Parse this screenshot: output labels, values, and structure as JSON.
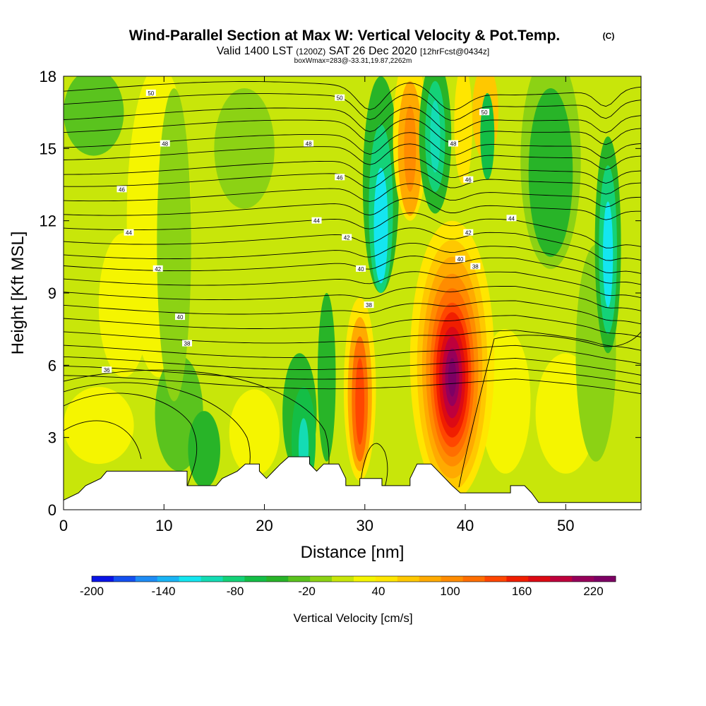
{
  "title": {
    "main": "Wind-Parallel Section at Max W: Vertical Velocity & Pot.Temp.",
    "copyright": "(C)",
    "valid_prefix": "Valid 1400 LST",
    "valid_utc": "(1200Z)",
    "valid_date": "SAT 26 Dec 2020",
    "forecast": "[12hrFcst@0434z]",
    "box_info": "boxWmax=283@-33.31,19.87,2262m"
  },
  "chart_data": {
    "type": "heatmap",
    "xlabel": "Distance [nm]",
    "ylabel": "Height [Kft MSL]",
    "xlim": [
      0,
      57.5
    ],
    "ylim": [
      0,
      18
    ],
    "x_ticks": [
      0,
      10,
      20,
      30,
      40,
      50
    ],
    "y_ticks": [
      0,
      3,
      6,
      9,
      12,
      15,
      18
    ],
    "colorbar": {
      "label": "Vertical Velocity [cm/s]",
      "tick_labels": [
        "-200",
        "-140",
        "-80",
        "-20",
        "40",
        "100",
        "160",
        "220"
      ],
      "colors": [
        "#0a14e6",
        "#1450f0",
        "#1e8cf5",
        "#19b4f5",
        "#14e6f0",
        "#14dcb4",
        "#14d278",
        "#14be46",
        "#28b428",
        "#5ac31e",
        "#8cd214",
        "#c8e60a",
        "#f5f500",
        "#ffe600",
        "#ffc800",
        "#ffaa00",
        "#ff8c00",
        "#ff6e00",
        "#ff4600",
        "#f01e00",
        "#dc0a14",
        "#be003c",
        "#96005a",
        "#7d0064"
      ]
    },
    "w_features": [
      {
        "kind": "updraft",
        "x": 38.7,
        "y_kft": 5.5,
        "max_cm_s": 230
      },
      {
        "kind": "updraft",
        "x": 29.5,
        "y_kft": 4.5,
        "max_cm_s": 160
      },
      {
        "kind": "updraft",
        "x": 34.5,
        "y_kft": 14.0,
        "max_cm_s": 80
      },
      {
        "kind": "updraft",
        "x": 41.5,
        "y_kft": 16.5,
        "max_cm_s": 60
      },
      {
        "kind": "downdraft",
        "x": 37.0,
        "y_kft": 15.5,
        "max_cm_s": -90
      },
      {
        "kind": "downdraft",
        "x": 54.0,
        "y_kft": 10.5,
        "max_cm_s": -150
      },
      {
        "kind": "downdraft",
        "x": 31.5,
        "y_kft": 11.5,
        "max_cm_s": -100
      },
      {
        "kind": "downdraft",
        "x": 24.0,
        "y_kft": 3.0,
        "max_cm_s": -90
      }
    ],
    "theta_labels": [
      {
        "text": "50",
        "x": 8.7,
        "y": 17.3
      },
      {
        "text": "50",
        "x": 27.5,
        "y": 17.1
      },
      {
        "text": "50",
        "x": 41.9,
        "y": 16.5
      },
      {
        "text": "48",
        "x": 10.1,
        "y": 15.2
      },
      {
        "text": "48",
        "x": 24.4,
        "y": 15.2
      },
      {
        "text": "48",
        "x": 38.8,
        "y": 15.2
      },
      {
        "text": "46",
        "x": 5.8,
        "y": 13.3
      },
      {
        "text": "46",
        "x": 27.5,
        "y": 13.8
      },
      {
        "text": "46",
        "x": 40.3,
        "y": 13.7
      },
      {
        "text": "44",
        "x": 6.5,
        "y": 11.5
      },
      {
        "text": "44",
        "x": 25.2,
        "y": 12.0
      },
      {
        "text": "44",
        "x": 44.6,
        "y": 12.1
      },
      {
        "text": "42",
        "x": 9.4,
        "y": 10.0
      },
      {
        "text": "42",
        "x": 28.2,
        "y": 11.3
      },
      {
        "text": "42",
        "x": 40.3,
        "y": 11.5
      },
      {
        "text": "40",
        "x": 11.6,
        "y": 8.0
      },
      {
        "text": "40",
        "x": 29.6,
        "y": 10.0
      },
      {
        "text": "40",
        "x": 39.5,
        "y": 10.4
      },
      {
        "text": "38",
        "x": 12.3,
        "y": 6.9
      },
      {
        "text": "38",
        "x": 30.4,
        "y": 8.5
      },
      {
        "text": "38",
        "x": 41.0,
        "y": 10.1
      },
      {
        "text": "36",
        "x": 4.3,
        "y": 5.8
      }
    ],
    "terrain_kft": [
      [
        0,
        0.4
      ],
      [
        1.5,
        0.7
      ],
      [
        2.2,
        1.0
      ],
      [
        3.7,
        1.3
      ],
      [
        4.3,
        1.6
      ],
      [
        12.3,
        1.6
      ],
      [
        12.3,
        1.0
      ],
      [
        15.2,
        1.0
      ],
      [
        15.8,
        1.3
      ],
      [
        17.3,
        1.6
      ],
      [
        18.1,
        1.9
      ],
      [
        19.5,
        1.9
      ],
      [
        19.5,
        1.6
      ],
      [
        20.2,
        1.3
      ],
      [
        20.9,
        1.6
      ],
      [
        21.6,
        1.9
      ],
      [
        22.4,
        2.2
      ],
      [
        24.5,
        2.2
      ],
      [
        24.5,
        1.9
      ],
      [
        25.2,
        1.6
      ],
      [
        25.9,
        1.9
      ],
      [
        27.4,
        1.9
      ],
      [
        28.1,
        1.3
      ],
      [
        28.1,
        1.0
      ],
      [
        29.5,
        1.0
      ],
      [
        29.5,
        1.3
      ],
      [
        31.7,
        1.3
      ],
      [
        31.7,
        1.0
      ],
      [
        34.5,
        1.0
      ],
      [
        34.5,
        1.3
      ],
      [
        35.2,
        1.9
      ],
      [
        36.6,
        1.9
      ],
      [
        38.0,
        1.3
      ],
      [
        38.7,
        1.0
      ],
      [
        39.5,
        0.7
      ],
      [
        44.5,
        0.7
      ],
      [
        44.5,
        1.0
      ],
      [
        45.9,
        1.0
      ],
      [
        46.6,
        0.7
      ],
      [
        47.3,
        0.3
      ],
      [
        57.5,
        0.3
      ]
    ]
  }
}
